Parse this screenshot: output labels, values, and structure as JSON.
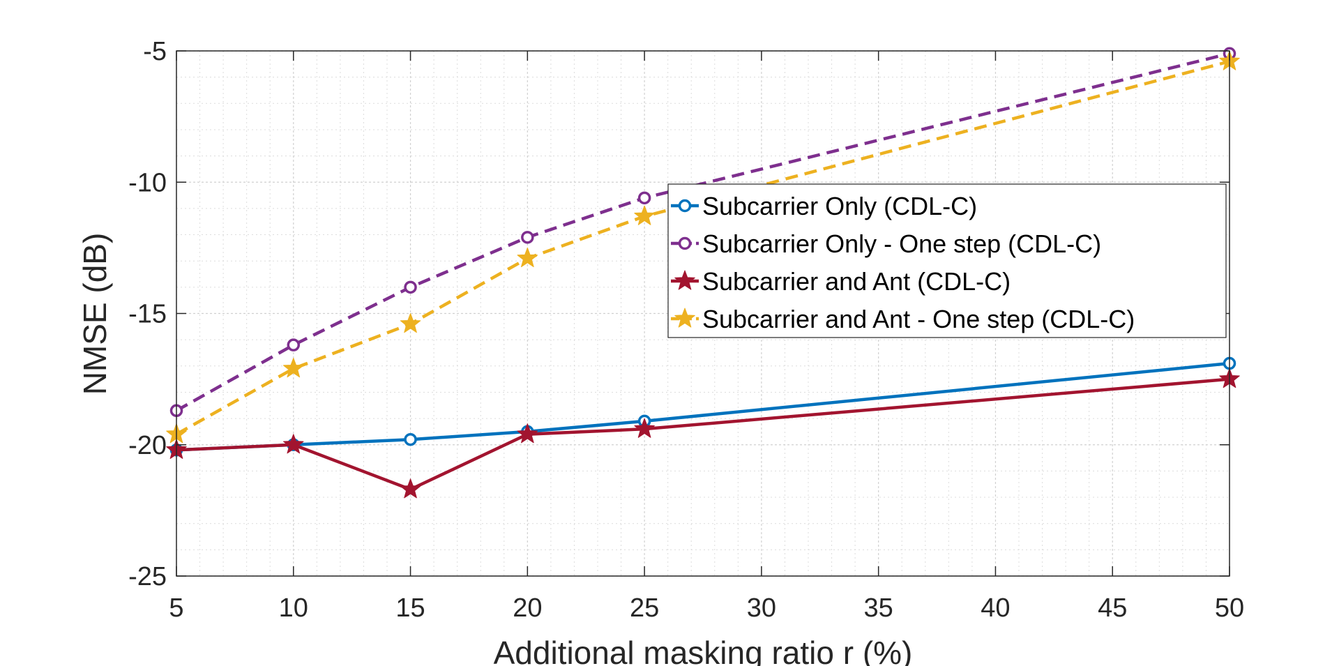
{
  "chart_data": {
    "type": "line",
    "title": "",
    "xlabel": "Additional masking ratio r (%)",
    "ylabel": "NMSE (dB)",
    "xlim": [
      5,
      50
    ],
    "ylim": [
      -25,
      -5
    ],
    "xticks": [
      5,
      10,
      15,
      20,
      25,
      30,
      35,
      40,
      45,
      50
    ],
    "yticks": [
      -25,
      -20,
      -15,
      -10,
      -5
    ],
    "grid": true,
    "minor_grid": true,
    "legend_position": "upper-right-center",
    "x": [
      5,
      10,
      15,
      20,
      25,
      50
    ],
    "series": [
      {
        "name": "Subcarrier Only (CDL-C)",
        "values": [
          -20.2,
          -20.0,
          -19.8,
          -19.5,
          -19.1,
          -16.9
        ],
        "color": "#0072BD",
        "dash": "solid",
        "marker": "circle"
      },
      {
        "name": "Subcarrier Only - One step (CDL-C)",
        "values": [
          -18.7,
          -16.2,
          -14.0,
          -12.1,
          -10.6,
          -5.1
        ],
        "color": "#7E2F8E",
        "dash": "dashed",
        "marker": "circle"
      },
      {
        "name": "Subcarrier and Ant (CDL-C)",
        "values": [
          -20.2,
          -20.0,
          -21.7,
          -19.6,
          -19.4,
          -17.5
        ],
        "color": "#A2142F",
        "dash": "solid",
        "marker": "star"
      },
      {
        "name": "Subcarrier and Ant - One step (CDL-C)",
        "values": [
          -19.6,
          -17.1,
          -15.4,
          -12.9,
          -11.3,
          -5.4
        ],
        "color": "#EDB120",
        "dash": "dashed",
        "marker": "star"
      }
    ]
  }
}
